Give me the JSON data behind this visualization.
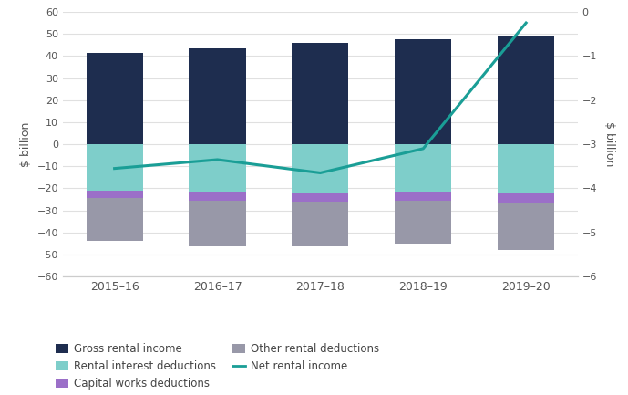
{
  "years": [
    "2015–16",
    "2016–17",
    "2017–18",
    "2018–19",
    "2019–20"
  ],
  "gross_rental_income": [
    41.5,
    43.5,
    46.0,
    47.5,
    49.0
  ],
  "rental_interest_deductions": [
    -21.0,
    -22.0,
    -22.5,
    -22.0,
    -22.5
  ],
  "capital_works_deductions": [
    -3.5,
    -3.8,
    -3.5,
    -3.5,
    -4.5
  ],
  "other_rental_deductions": [
    -19.5,
    -20.5,
    -20.5,
    -20.0,
    -21.0
  ],
  "net_rental_income": [
    -3.55,
    -3.35,
    -3.65,
    -3.1,
    -0.25
  ],
  "bar_colors": {
    "gross_rental_income": "#1e2d4f",
    "rental_interest_deductions": "#7ececa",
    "capital_works_deductions": "#9b6fc8",
    "other_rental_deductions": "#9898a8"
  },
  "line_color": "#1a9e96",
  "left_ylim": [
    -60,
    60
  ],
  "right_ylim": [
    -6,
    0
  ],
  "left_yticks": [
    -60,
    -50,
    -40,
    -30,
    -20,
    -10,
    0,
    10,
    20,
    30,
    40,
    50,
    60
  ],
  "right_yticks": [
    -6,
    -5,
    -4,
    -3,
    -2,
    -1,
    0
  ],
  "left_ylabel": "$ billion",
  "right_ylabel": "$ billion",
  "background_color": "#ffffff",
  "grid_color": "#e0e0e0",
  "bar_width": 0.55
}
